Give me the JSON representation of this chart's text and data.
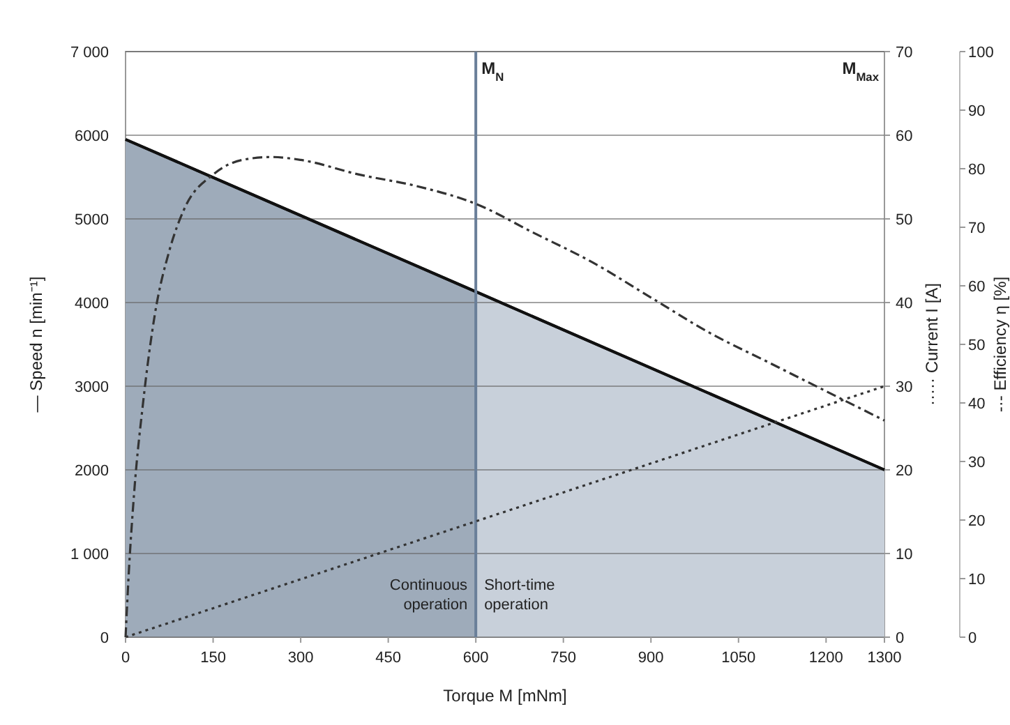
{
  "chart_data": {
    "type": "line",
    "xlabel": "Torque M [mNm]",
    "ylabel": "— Speed n [min⁻¹]",
    "y2label": "····· Current I [A]",
    "y3label": "-·- Efficiency η [%]",
    "xlim": [
      0,
      1300
    ],
    "xticks": [
      0,
      150,
      300,
      450,
      600,
      750,
      900,
      1050,
      1200,
      1300
    ],
    "ylim": [
      0,
      7000
    ],
    "yticks": [
      {
        "value": 0,
        "label": "0"
      },
      {
        "value": 1000,
        "label": "1 000"
      },
      {
        "value": 2000,
        "label": "2000"
      },
      {
        "value": 3000,
        "label": "3000"
      },
      {
        "value": 4000,
        "label": "4000"
      },
      {
        "value": 5000,
        "label": "5000"
      },
      {
        "value": 6000,
        "label": "6000"
      },
      {
        "value": 7000,
        "label": "7 000"
      }
    ],
    "y2lim": [
      0,
      70
    ],
    "y2ticks": [
      0,
      10,
      20,
      30,
      40,
      50,
      60,
      70
    ],
    "y3lim": [
      0,
      100
    ],
    "y3ticks": [
      0,
      10,
      20,
      30,
      40,
      50,
      60,
      70,
      80,
      90,
      100
    ],
    "grid": "y",
    "legend": false,
    "series": [
      {
        "name": "Continuous operation",
        "type": "area",
        "color": "#9eabba",
        "x": [
          0,
          600
        ],
        "values": [
          5950,
          4130
        ]
      },
      {
        "name": "Short-time operation",
        "type": "area",
        "color": "#c8d0da",
        "x": [
          600,
          1300
        ],
        "values": [
          4130,
          2000
        ]
      },
      {
        "axis": "y2",
        "color": "#333333",
        "line_style": "dotted",
        "x": [
          0,
          1300
        ],
        "values": [
          0,
          30
        ]
      },
      {
        "axis": "y3",
        "color": "#333333",
        "line_style": "dashed",
        "x": [
          0,
          5,
          15,
          30,
          50,
          75,
          100,
          150,
          200,
          250,
          300,
          400,
          500,
          600,
          700,
          800,
          900,
          1000,
          1100,
          1200,
          1300
        ],
        "values": [
          0,
          10,
          25,
          40,
          55,
          66,
          73,
          79,
          81.5,
          82,
          81.5,
          79,
          77,
          74,
          69,
          64,
          58,
          52,
          47,
          42,
          37
        ]
      }
    ],
    "ref_lines": [
      {
        "axis": "x",
        "value": 600,
        "label": "M$_{N}$",
        "color": "#6a7f99"
      }
    ],
    "annotations": [
      "M$_{Max}$"
    ]
  }
}
